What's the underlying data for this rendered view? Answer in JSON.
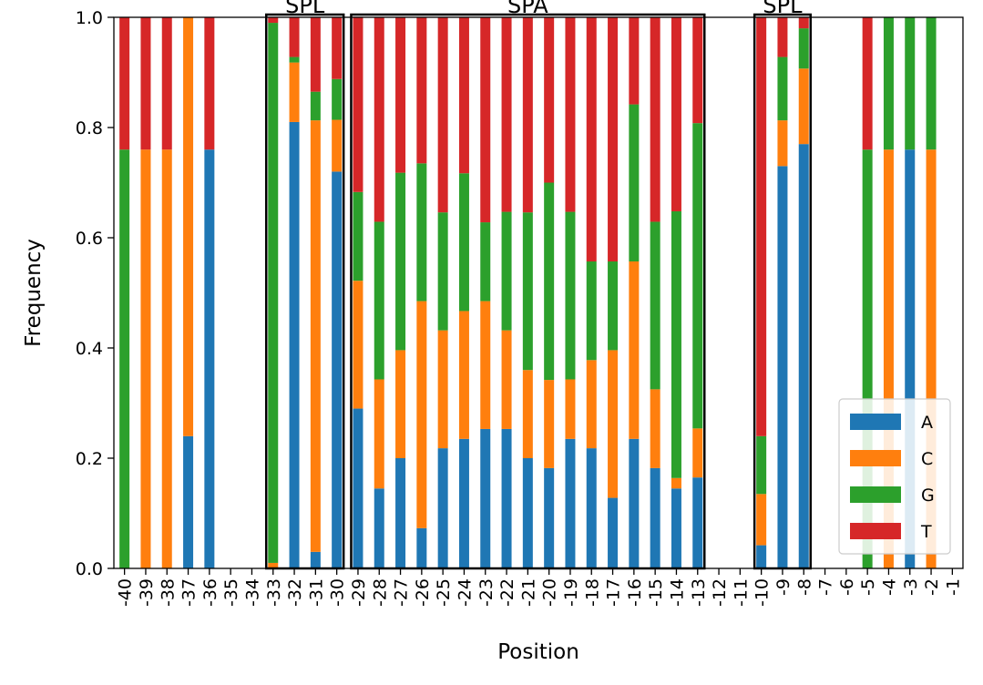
{
  "chart_data": {
    "type": "bar",
    "stacked": true,
    "title": "",
    "xlabel": "Position",
    "ylabel": "Frequency",
    "ylim": [
      0,
      1.0
    ],
    "yticks": [
      "0.0",
      "0.2",
      "0.4",
      "0.6",
      "0.8",
      "1.0"
    ],
    "grid": false,
    "legend_position": "bottom-right",
    "categories": [
      "-40",
      "-39",
      "-38",
      "-37",
      "-36",
      "-35",
      "-34",
      "-33",
      "-32",
      "-31",
      "-30",
      "-29",
      "-28",
      "-27",
      "-26",
      "-25",
      "-24",
      "-23",
      "-22",
      "-21",
      "-20",
      "-19",
      "-18",
      "-17",
      "-16",
      "-15",
      "-14",
      "-13",
      "-12",
      "-11",
      "-10",
      "-9",
      "-8",
      "-7",
      "-6",
      "-5",
      "-4",
      "-3",
      "-2",
      "-1"
    ],
    "series": [
      {
        "name": "A",
        "color": "#1f77b4",
        "values": [
          0,
          0,
          0,
          0.24,
          0.76,
          0,
          0,
          0,
          0.81,
          0.03,
          0.72,
          0.29,
          0.145,
          0.2,
          0.073,
          0.218,
          0.235,
          0.253,
          0.253,
          0.2,
          0.182,
          0.235,
          0.218,
          0.128,
          0.235,
          0.182,
          0.145,
          0.165,
          0,
          0,
          0.042,
          0.73,
          0.77,
          0,
          0,
          0,
          0,
          0.76,
          0,
          0
        ]
      },
      {
        "name": "C",
        "color": "#ff7f0e",
        "values": [
          0,
          0.76,
          0.76,
          0.76,
          0,
          0,
          0,
          0.01,
          0.108,
          0.783,
          0.094,
          0.232,
          0.198,
          0.196,
          0.412,
          0.214,
          0.232,
          0.232,
          0.179,
          0.16,
          0.16,
          0.108,
          0.16,
          0.268,
          0.322,
          0.143,
          0.019,
          0.089,
          0,
          0,
          0.093,
          0.083,
          0.137,
          0,
          0,
          0,
          0.76,
          0,
          0.76,
          0
        ]
      },
      {
        "name": "G",
        "color": "#2ca02c",
        "values": [
          0.76,
          0,
          0,
          0,
          0,
          0,
          0,
          0.98,
          0.01,
          0.052,
          0.074,
          0.161,
          0.286,
          0.322,
          0.25,
          0.214,
          0.25,
          0.143,
          0.215,
          0.286,
          0.358,
          0.304,
          0.179,
          0.161,
          0.285,
          0.304,
          0.484,
          0.554,
          0,
          0,
          0.105,
          0.115,
          0.073,
          0,
          0,
          0.76,
          0.24,
          0.24,
          0.24,
          0
        ]
      },
      {
        "name": "T",
        "color": "#d62728",
        "values": [
          0.24,
          0.24,
          0.24,
          0,
          0.24,
          0,
          0,
          0.01,
          0.072,
          0.135,
          0.112,
          0.318,
          0.371,
          0.282,
          0.265,
          0.354,
          0.283,
          0.372,
          0.353,
          0.354,
          0.3,
          0.353,
          0.443,
          0.443,
          0.158,
          0.371,
          0.352,
          0.192,
          0,
          0,
          0.76,
          0.072,
          0.02,
          0,
          0,
          0.24,
          0,
          0,
          0,
          0
        ]
      }
    ],
    "annotations": [
      {
        "text": "SPL",
        "from": "-33",
        "to": "-30"
      },
      {
        "text": "SPA",
        "from": "-29",
        "to": "-13"
      },
      {
        "text": "SPL",
        "from": "-10",
        "to": "-8"
      }
    ]
  }
}
